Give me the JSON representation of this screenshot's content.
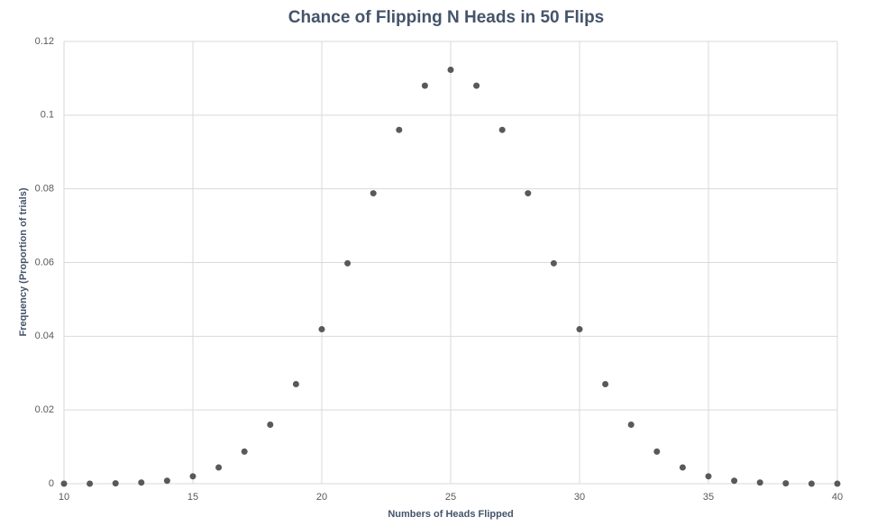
{
  "chart_data": {
    "type": "scatter",
    "title": "Chance of Flipping N Heads in 50 Flips",
    "x_label": "Numbers of Heads Flipped",
    "y_label": "Frequency (Proportion of trials)",
    "color": "#595959",
    "grid": true,
    "xlim": [
      10,
      40
    ],
    "xticks": [
      10,
      15,
      20,
      25,
      30,
      35,
      40
    ],
    "ylim": [
      0,
      0.12
    ],
    "yticks": [
      0,
      0.02,
      0.04,
      0.06,
      0.08,
      0.1,
      0.12
    ],
    "x": [
      10,
      11,
      12,
      13,
      14,
      15,
      16,
      17,
      18,
      19,
      20,
      21,
      22,
      23,
      24,
      25,
      26,
      27,
      28,
      29,
      30,
      31,
      32,
      33,
      34,
      35,
      36,
      37,
      38,
      39,
      40
    ],
    "values": [
      0.0,
      0.0,
      0.0001,
      0.0003,
      0.0008,
      0.002,
      0.0044,
      0.0087,
      0.016,
      0.027,
      0.0419,
      0.0598,
      0.0788,
      0.096,
      0.108,
      0.1123,
      0.108,
      0.096,
      0.0788,
      0.0598,
      0.0419,
      0.027,
      0.016,
      0.0087,
      0.0044,
      0.002,
      0.0008,
      0.0003,
      0.0001,
      0.0,
      0.0
    ]
  }
}
